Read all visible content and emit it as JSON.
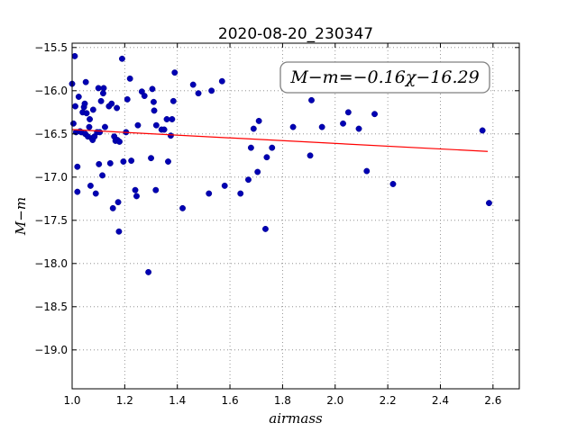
{
  "chart_data": {
    "type": "scatter",
    "title": "2020-08-20_230347",
    "xlabel": "airmass",
    "ylabel": "M−m",
    "xlim": [
      1.0,
      2.7
    ],
    "ylim": [
      -15.45,
      -19.45
    ],
    "y_inverted": true,
    "grid": true,
    "x_ticks": [
      1.0,
      1.2,
      1.4,
      1.6,
      1.8,
      2.0,
      2.2,
      2.4,
      2.6
    ],
    "x_tick_labels": [
      "1.0",
      "1.2",
      "1.4",
      "1.6",
      "1.8",
      "2.0",
      "2.2",
      "2.4",
      "2.6"
    ],
    "y_ticks": [
      -15.5,
      -16.0,
      -16.5,
      -17.0,
      -17.5,
      -18.0,
      -18.5,
      -19.0
    ],
    "y_tick_labels": [
      "−15.5",
      "−16.0",
      "−16.5",
      "−17.0",
      "−17.5",
      "−18.0",
      "−18.5",
      "−19.0"
    ],
    "annotation": "M−m=−0.16χ−16.29",
    "annotation_placement": "top-right",
    "series": [
      {
        "marker": "circle",
        "color": "#0000b3",
        "points": [
          [
            1.0,
            -15.92
          ],
          [
            1.005,
            -16.38
          ],
          [
            1.01,
            -15.6
          ],
          [
            1.012,
            -16.18
          ],
          [
            1.015,
            -16.48
          ],
          [
            1.02,
            -16.88
          ],
          [
            1.02,
            -17.17
          ],
          [
            1.025,
            -16.07
          ],
          [
            1.03,
            -16.47
          ],
          [
            1.035,
            -16.48
          ],
          [
            1.04,
            -16.25
          ],
          [
            1.045,
            -16.19
          ],
          [
            1.048,
            -16.15
          ],
          [
            1.05,
            -16.5
          ],
          [
            1.052,
            -15.9
          ],
          [
            1.055,
            -16.26
          ],
          [
            1.06,
            -16.53
          ],
          [
            1.065,
            -16.42
          ],
          [
            1.067,
            -16.33
          ],
          [
            1.07,
            -17.1
          ],
          [
            1.075,
            -16.55
          ],
          [
            1.078,
            -16.57
          ],
          [
            1.08,
            -16.22
          ],
          [
            1.085,
            -16.53
          ],
          [
            1.09,
            -17.19
          ],
          [
            1.095,
            -16.48
          ],
          [
            1.1,
            -15.97
          ],
          [
            1.102,
            -16.85
          ],
          [
            1.105,
            -16.48
          ],
          [
            1.11,
            -16.12
          ],
          [
            1.115,
            -16.98
          ],
          [
            1.118,
            -16.03
          ],
          [
            1.12,
            -15.97
          ],
          [
            1.125,
            -16.42
          ],
          [
            1.14,
            -16.18
          ],
          [
            1.145,
            -16.84
          ],
          [
            1.15,
            -16.15
          ],
          [
            1.155,
            -17.36
          ],
          [
            1.16,
            -16.53
          ],
          [
            1.165,
            -16.58
          ],
          [
            1.17,
            -16.2
          ],
          [
            1.172,
            -16.57
          ],
          [
            1.175,
            -17.29
          ],
          [
            1.178,
            -17.63
          ],
          [
            1.18,
            -16.59
          ],
          [
            1.19,
            -15.63
          ],
          [
            1.195,
            -16.82
          ],
          [
            1.205,
            -16.48
          ],
          [
            1.21,
            -16.1
          ],
          [
            1.22,
            -15.86
          ],
          [
            1.225,
            -16.81
          ],
          [
            1.24,
            -17.15
          ],
          [
            1.245,
            -17.22
          ],
          [
            1.25,
            -16.4
          ],
          [
            1.265,
            -16.01
          ],
          [
            1.275,
            -16.06
          ],
          [
            1.29,
            -18.1
          ],
          [
            1.3,
            -16.78
          ],
          [
            1.305,
            -15.98
          ],
          [
            1.31,
            -16.13
          ],
          [
            1.312,
            -16.23
          ],
          [
            1.318,
            -17.15
          ],
          [
            1.32,
            -16.4
          ],
          [
            1.34,
            -16.45
          ],
          [
            1.35,
            -16.45
          ],
          [
            1.36,
            -16.33
          ],
          [
            1.365,
            -16.82
          ],
          [
            1.375,
            -16.52
          ],
          [
            1.38,
            -16.33
          ],
          [
            1.385,
            -16.12
          ],
          [
            1.39,
            -15.79
          ],
          [
            1.42,
            -17.36
          ],
          [
            1.46,
            -15.93
          ],
          [
            1.48,
            -16.03
          ],
          [
            1.52,
            -17.19
          ],
          [
            1.53,
            -16.0
          ],
          [
            1.57,
            -15.89
          ],
          [
            1.58,
            -17.1
          ],
          [
            1.64,
            -17.19
          ],
          [
            1.67,
            -17.03
          ],
          [
            1.68,
            -16.66
          ],
          [
            1.69,
            -16.44
          ],
          [
            1.705,
            -16.94
          ],
          [
            1.71,
            -16.35
          ],
          [
            1.735,
            -17.6
          ],
          [
            1.74,
            -16.77
          ],
          [
            1.76,
            -16.66
          ],
          [
            1.84,
            -16.42
          ],
          [
            1.905,
            -16.75
          ],
          [
            1.91,
            -16.11
          ],
          [
            1.95,
            -16.42
          ],
          [
            2.03,
            -16.38
          ],
          [
            2.05,
            -16.25
          ],
          [
            2.09,
            -16.44
          ],
          [
            2.12,
            -16.93
          ],
          [
            2.15,
            -16.27
          ],
          [
            2.22,
            -17.08
          ],
          [
            2.56,
            -16.46
          ],
          [
            2.585,
            -17.3
          ]
        ]
      }
    ],
    "fit_line": {
      "color": "#ff0000",
      "slope": -0.16,
      "intercept": -16.29,
      "x_range": [
        1.0,
        2.58
      ]
    }
  }
}
